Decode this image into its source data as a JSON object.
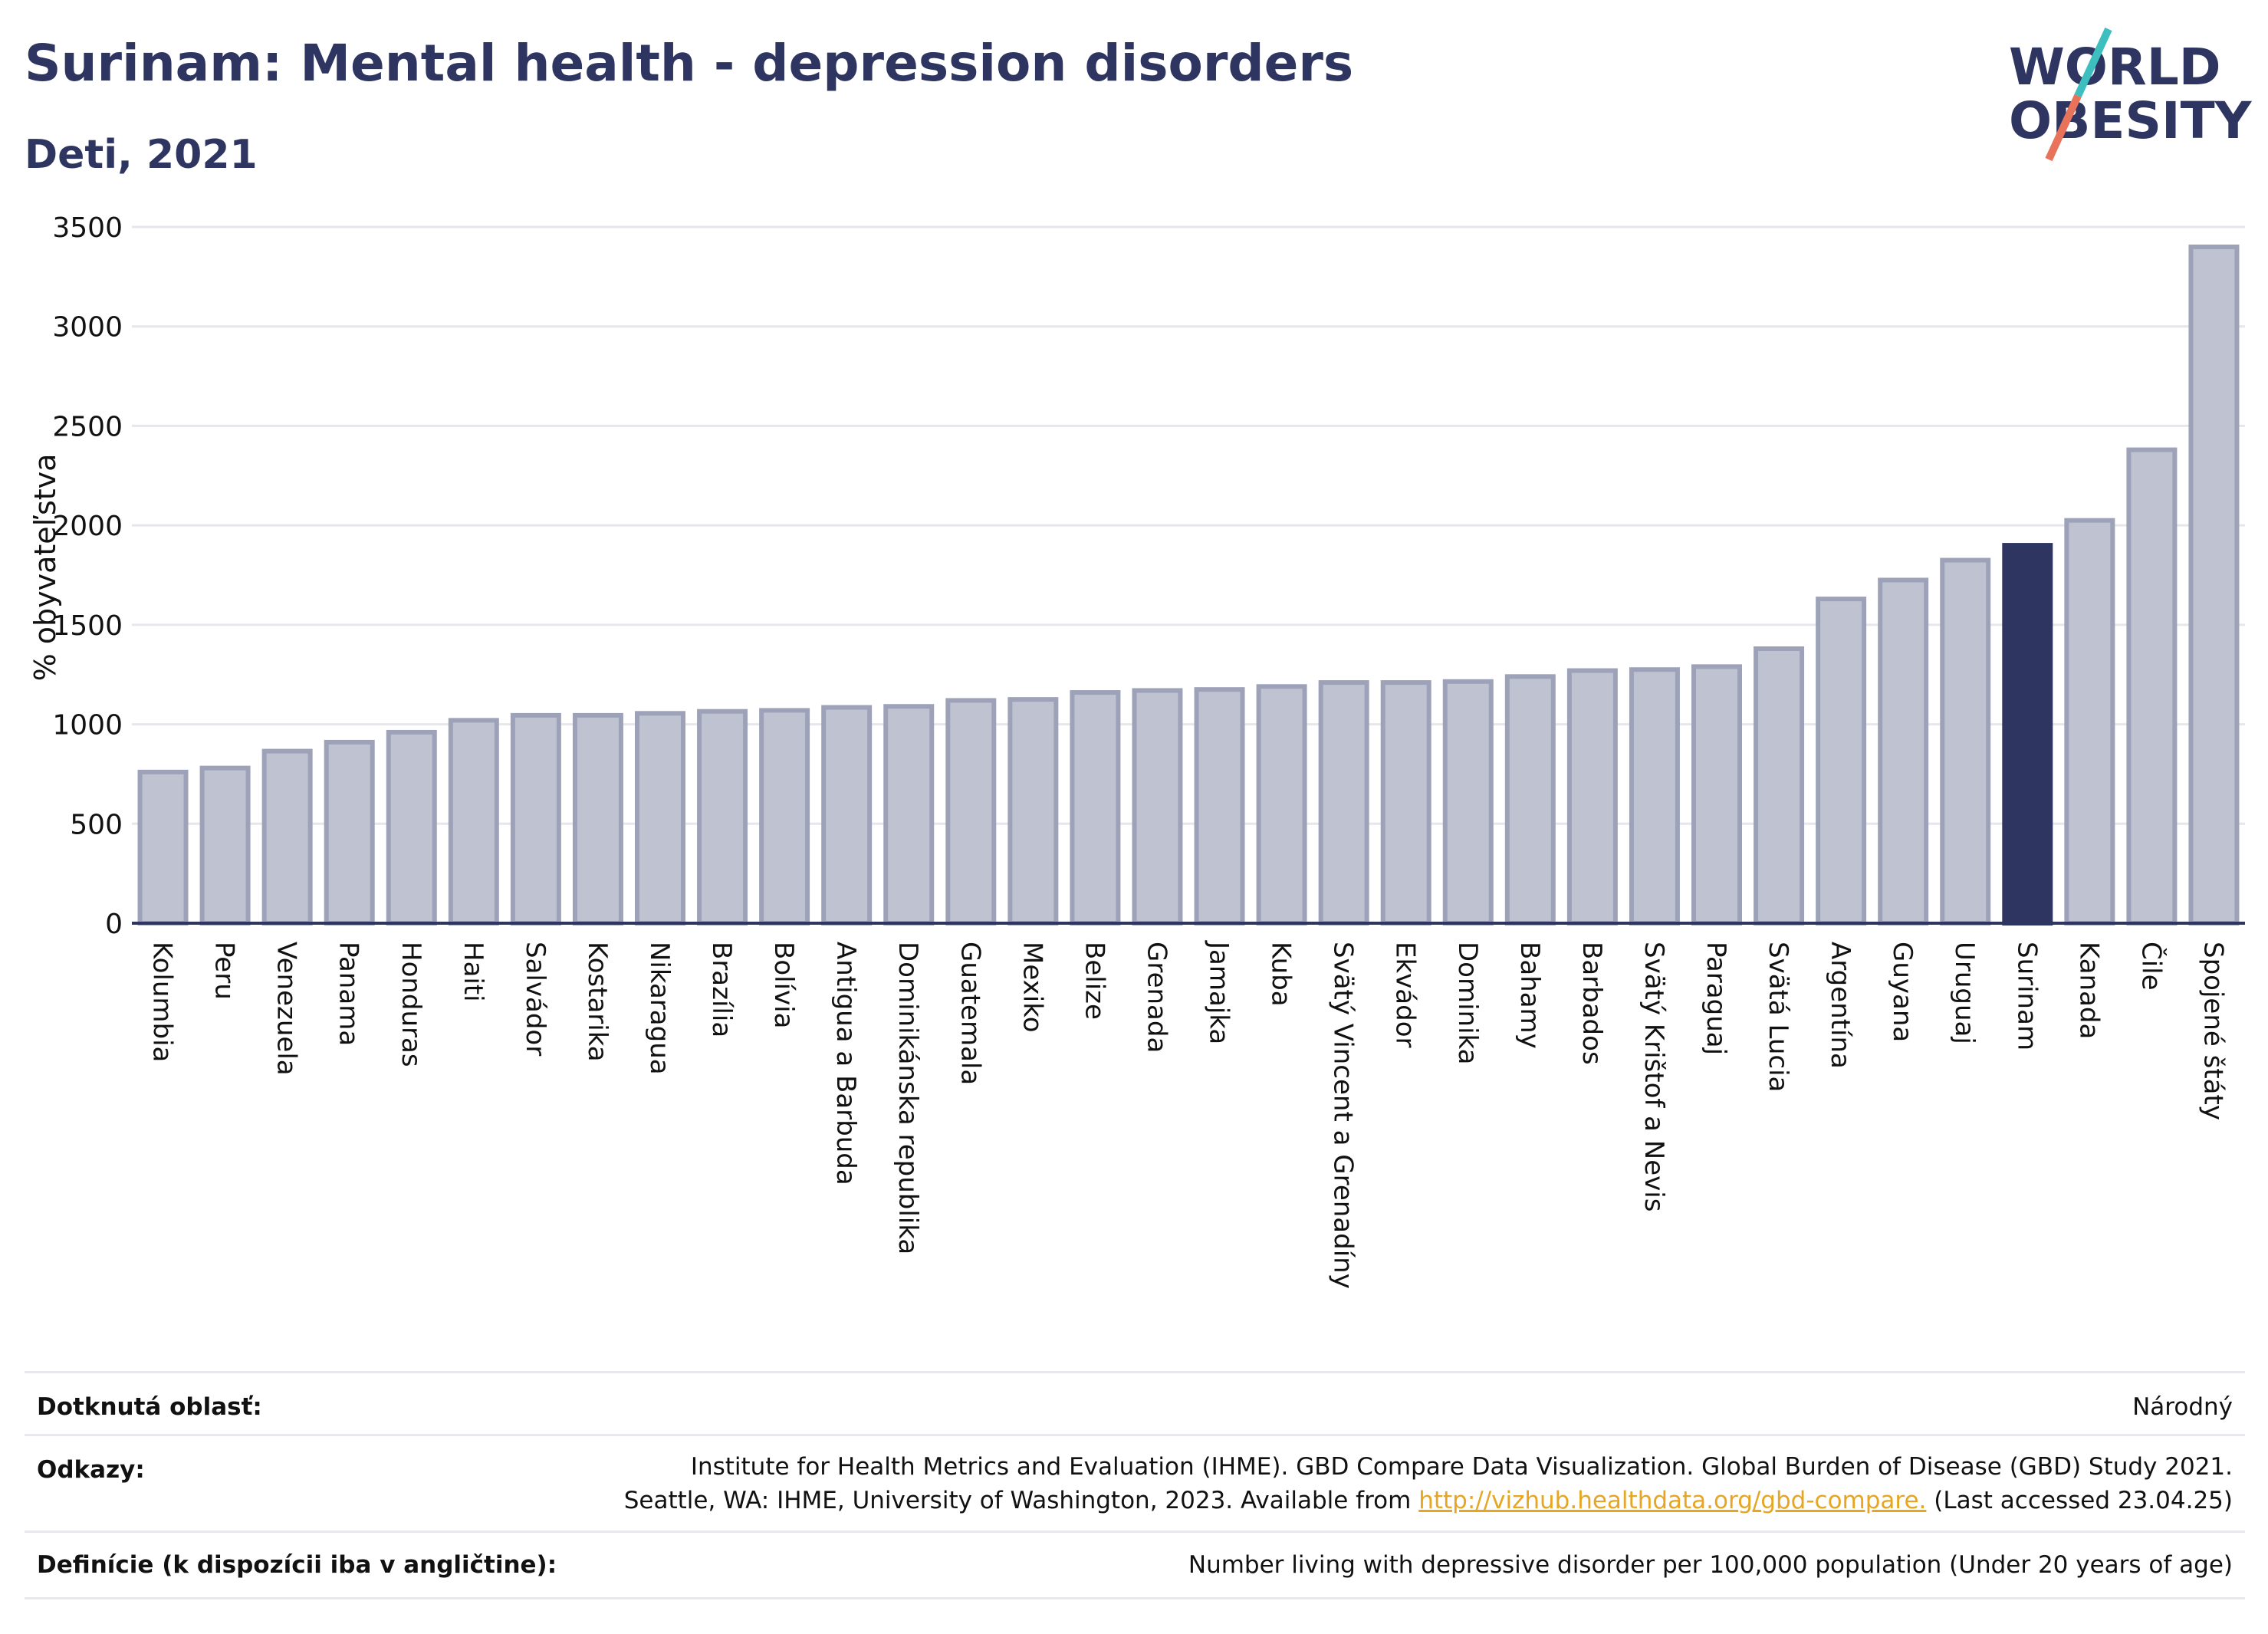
{
  "header": {
    "title": "Surinam: Mental health - depression disorders",
    "subtitle": "Deti, 2021"
  },
  "logo": {
    "line1": "WORLD",
    "line2": "OBESITY"
  },
  "chart_data": {
    "type": "bar",
    "title": "Surinam: Mental health - depression disorders",
    "subtitle": "Deti, 2021",
    "ylabel": "% obyvateľstva",
    "xlabel": "",
    "ylim": [
      0,
      3500
    ],
    "yticks": [
      0,
      500,
      1000,
      1500,
      2000,
      2500,
      3000,
      3500
    ],
    "grid": true,
    "highlight": "Surinam",
    "colors": {
      "bar": "#bfc2d0",
      "bar_stroke": "#9da2b8",
      "highlight": "#2d3560",
      "grid": "#e6e6ec",
      "axis": "#2d3560"
    },
    "categories": [
      "Kolumbia",
      "Peru",
      "Venezuela",
      "Panama",
      "Honduras",
      "Haiti",
      "Salvádor",
      "Kostarika",
      "Nikaragua",
      "Brazília",
      "Bolívia",
      "Antigua a Barbuda",
      "Dominikánska republika",
      "Guatemala",
      "Mexiko",
      "Belize",
      "Grenada",
      "Jamajka",
      "Kuba",
      "Svätý Vincent a Grenadíny",
      "Ekvádor",
      "Dominika",
      "Bahamy",
      "Barbados",
      "Svätý Krištof a Nevis",
      "Paraguaj",
      "Svätá Lucia",
      "Argentína",
      "Guyana",
      "Uruguaj",
      "Surinam",
      "Kanada",
      "Čile",
      "Spojené štáty"
    ],
    "values": [
      760,
      780,
      865,
      910,
      960,
      1020,
      1045,
      1045,
      1055,
      1065,
      1070,
      1085,
      1090,
      1120,
      1125,
      1160,
      1170,
      1175,
      1190,
      1210,
      1210,
      1215,
      1240,
      1270,
      1275,
      1290,
      1380,
      1630,
      1725,
      1825,
      1900,
      2025,
      2380,
      3400
    ]
  },
  "info": {
    "area_label": "Dotknutá oblasť:",
    "area_value": "Národný",
    "refs_label": "Odkazy:",
    "refs_line1": "Institute for Health Metrics and Evaluation (IHME). GBD Compare Data Visualization. Global Burden of Disease (GBD) Study 2021.",
    "refs_line2_pre": "Seattle, WA: IHME, University of Washington, 2023. Available from ",
    "refs_link": "http://vizhub.healthdata.org/gbd-compare.",
    "refs_line2_post": " (Last accessed 23.04.25)",
    "def_label": "Definície (k dispozícii iba v angličtine):",
    "def_value": "Number living with depressive disorder per 100,000 population (Under 20 years of age)"
  }
}
